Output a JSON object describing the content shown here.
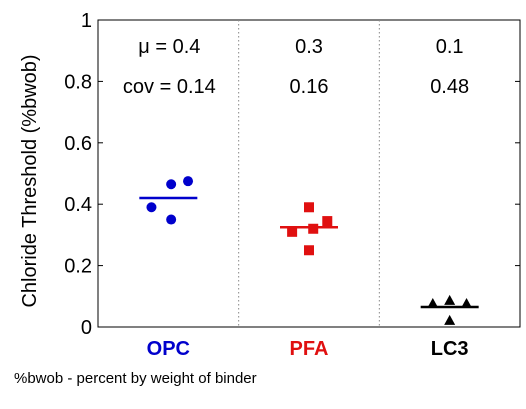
{
  "chart_data": {
    "type": "scatter",
    "ylabel": "Chloride Threshold (%bwob)",
    "ylim": [
      0,
      1
    ],
    "yticks": [
      0,
      0.2,
      0.4,
      0.6,
      0.8,
      1
    ],
    "ytick_labels": [
      "0",
      "0.2",
      "0.4",
      "0.6",
      "0.8",
      "1"
    ],
    "categories": [
      "OPC",
      "PFA",
      "LC3"
    ],
    "series": [
      {
        "category": "OPC",
        "color": "#0000cc",
        "marker": "circle",
        "points": [
          {
            "offset": -0.12,
            "y": 0.39
          },
          {
            "offset": 0.02,
            "y": 0.465
          },
          {
            "offset": 0.14,
            "y": 0.475
          },
          {
            "offset": 0.02,
            "y": 0.35
          }
        ],
        "mean": 0.42,
        "mu_label": "μ = 0.4",
        "cov_label": "cov = 0.14"
      },
      {
        "category": "PFA",
        "color": "#e01010",
        "marker": "square",
        "points": [
          {
            "offset": -0.12,
            "y": 0.31
          },
          {
            "offset": 0.0,
            "y": 0.39
          },
          {
            "offset": 0.13,
            "y": 0.345
          },
          {
            "offset": 0.03,
            "y": 0.32
          },
          {
            "offset": 0.0,
            "y": 0.25
          }
        ],
        "mean": 0.325,
        "mu_label": "0.3",
        "cov_label": "0.16"
      },
      {
        "category": "LC3",
        "color": "#000000",
        "marker": "triangle",
        "points": [
          {
            "offset": -0.12,
            "y": 0.075
          },
          {
            "offset": 0.0,
            "y": 0.085
          },
          {
            "offset": 0.12,
            "y": 0.075
          },
          {
            "offset": 0.0,
            "y": 0.02
          }
        ],
        "mean": 0.065,
        "mu_label": "0.1",
        "cov_label": "0.48"
      }
    ],
    "grid": "vertical dotted separators between groups"
  },
  "footnote": "%bwob - percent by weight of binder"
}
